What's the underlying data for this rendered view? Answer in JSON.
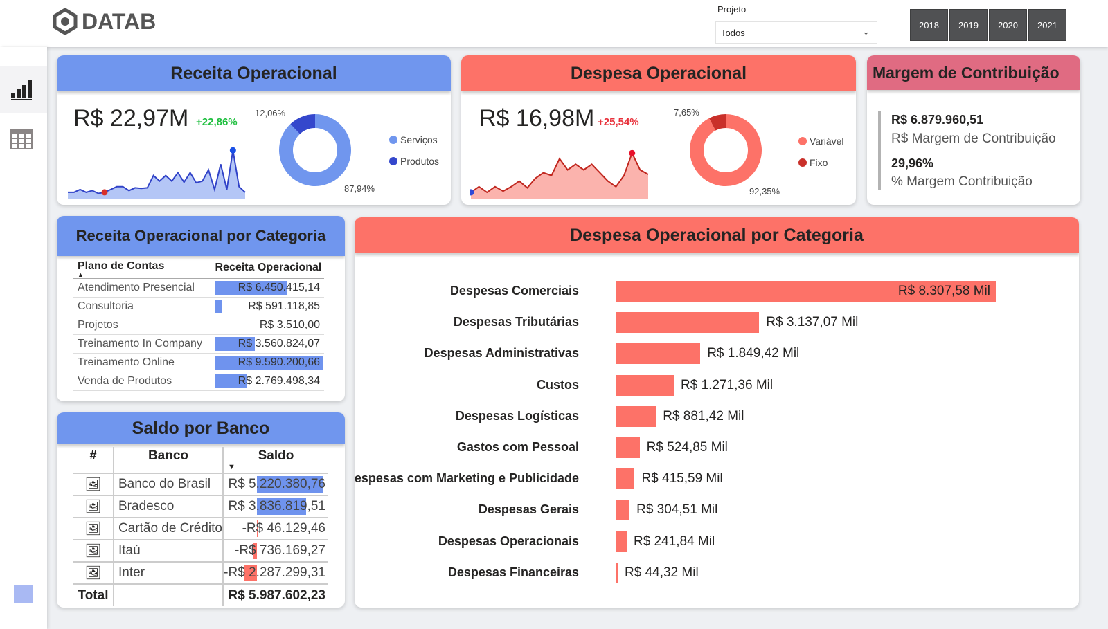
{
  "header": {
    "logo": "DATAB",
    "project_label": "Projeto",
    "project_value": "Todos",
    "years": [
      "2018",
      "2019",
      "2020",
      "2021"
    ]
  },
  "sidebar": {
    "items": [
      {
        "icon": "bar-chart-icon",
        "active": true
      },
      {
        "icon": "table-icon",
        "active": false
      }
    ]
  },
  "receita": {
    "title": "Receita Operacional",
    "value": "R$ 22,97M",
    "change": "+22,86%",
    "change_color": "#1fbf3f",
    "donut": [
      {
        "label": "Serviços",
        "pct": "87,94%",
        "value": 87.94,
        "color": "#7096ee"
      },
      {
        "label": "Produtos",
        "pct": "12,06%",
        "value": 12.06,
        "color": "#3447cc"
      }
    ]
  },
  "despesa": {
    "title": "Despesa Operacional",
    "value": "R$ 16,98M",
    "change": "+25,54%",
    "change_color": "#e8323c",
    "donut": [
      {
        "label": "Variável",
        "pct": "92,35%",
        "value": 92.35,
        "color": "#fd7268"
      },
      {
        "label": "Fixo",
        "pct": "7,65%",
        "value": 7.65,
        "color": "#c9302a"
      }
    ]
  },
  "margem": {
    "title": "Margem de Contribuição",
    "value1": "R$ 6.879.960,51",
    "label1": "R$ Margem de Contribuição",
    "value2": "29,96%",
    "label2": "% Margem Contribuição"
  },
  "receita_cat": {
    "title": "Receita Operacional por Categoria",
    "col1": "Plano de Contas",
    "col2": "Receita Operacional",
    "rows": [
      {
        "name": "Atendimento Presencial",
        "value": "R$ 6.450.415,14",
        "num": 6450415.14
      },
      {
        "name": "Consultoria",
        "value": "R$ 591.118,85",
        "num": 591118.85
      },
      {
        "name": "Projetos",
        "value": "R$ 3.510,00",
        "num": 3510
      },
      {
        "name": "Treinamento In Company",
        "value": "R$ 3.560.824,07",
        "num": 3560824.07
      },
      {
        "name": "Treinamento Online",
        "value": "R$ 9.590.200,66",
        "num": 9590200.66
      },
      {
        "name": "Venda de Produtos",
        "value": "R$ 2.769.498,34",
        "num": 2769498.34
      }
    ]
  },
  "saldo": {
    "title": "Saldo por Banco",
    "col0": "#",
    "col1": "Banco",
    "col2": "Saldo",
    "rows": [
      {
        "name": "Banco do Brasil",
        "value": "R$ 5.220.380,76",
        "num": 5220380.76
      },
      {
        "name": "Bradesco",
        "value": "R$ 3.836.819,51",
        "num": 3836819.51
      },
      {
        "name": "Cartão de Crédito",
        "value": "-R$ 46.129,46",
        "num": -46129.46
      },
      {
        "name": "Itaú",
        "value": "-R$ 736.169,27",
        "num": -736169.27
      },
      {
        "name": "Inter",
        "value": "-R$ 2.287.299,31",
        "num": -2287299.31
      }
    ],
    "total_label": "Total",
    "total": "R$ 5.987.602,23"
  },
  "despesa_cat": {
    "title": "Despesa Operacional por Categoria",
    "bar_color": "#fd7268",
    "rows": [
      {
        "name": "Despesas Comerciais",
        "value": "R$ 8.307,58 Mil",
        "num": 8307.58
      },
      {
        "name": "Despesas Tributárias",
        "value": "R$ 3.137,07 Mil",
        "num": 3137.07
      },
      {
        "name": "Despesas Administrativas",
        "value": "R$ 1.849,42 Mil",
        "num": 1849.42
      },
      {
        "name": "Custos",
        "value": "R$ 1.271,36 Mil",
        "num": 1271.36
      },
      {
        "name": "Despesas Logísticas",
        "value": "R$ 881,42 Mil",
        "num": 881.42
      },
      {
        "name": "Gastos com Pessoal",
        "value": "R$ 524,85 Mil",
        "num": 524.85
      },
      {
        "name": "Despesas com Marketing e Publicidade",
        "value": "R$ 415,59 Mil",
        "num": 415.59
      },
      {
        "name": "Despesas Gerais",
        "value": "R$ 304,51 Mil",
        "num": 304.51
      },
      {
        "name": "Despesas Operacionais",
        "value": "R$ 241,84 Mil",
        "num": 241.84
      },
      {
        "name": "Despesas Financeiras",
        "value": "R$ 44,32 Mil",
        "num": 44.32
      }
    ]
  }
}
